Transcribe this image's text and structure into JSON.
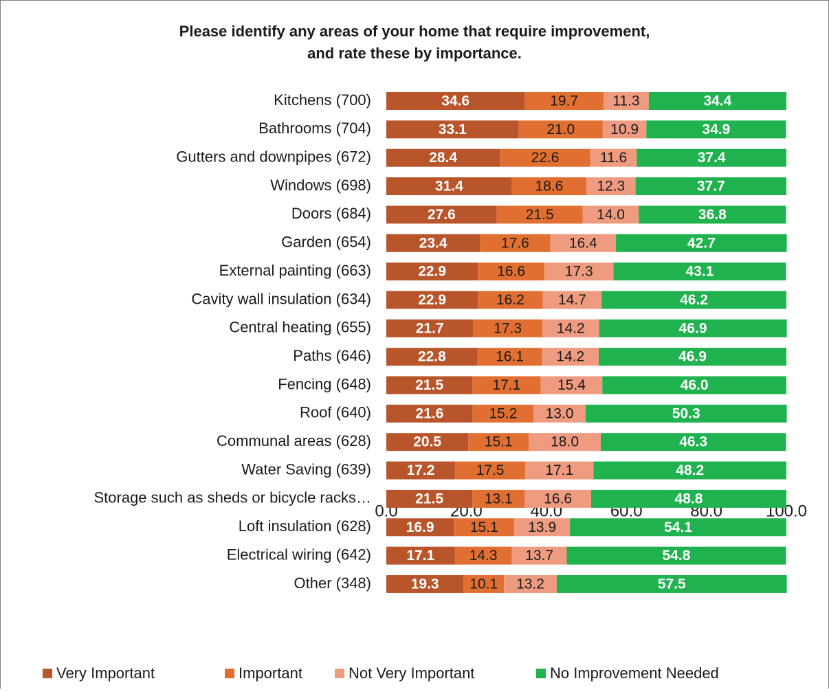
{
  "chart_data": {
    "type": "stacked_barh",
    "title": [
      "Please identify any areas of your home that require improvement,",
      "and rate these by importance."
    ],
    "categories": [
      "Kitchens (700)",
      "Bathrooms (704)",
      "Gutters and downpipes (672)",
      "Windows (698)",
      "Doors (684)",
      "Garden (654)",
      "External painting (663)",
      "Cavity wall insulation (634)",
      "Central heating (655)",
      "Paths (646)",
      "Fencing (648)",
      "Roof (640)",
      "Communal areas (628)",
      "Water Saving (639)",
      "Storage such as sheds or bicycle racks…",
      "Loft insulation (628)",
      "Electrical wiring (642)",
      "Other (348)"
    ],
    "series": [
      {
        "name": "Very Important",
        "color": "#b8552a",
        "label_color": "#ffffff",
        "values": [
          34.6,
          33.1,
          28.4,
          31.4,
          27.6,
          23.4,
          22.9,
          22.9,
          21.7,
          22.8,
          21.5,
          21.6,
          20.5,
          17.2,
          21.5,
          16.9,
          17.1,
          19.3
        ],
        "value_labels": [
          "34.6",
          "33.1",
          "28.4",
          "31.4",
          "27.6",
          "23.4",
          "22.9",
          "22.9",
          "21.7",
          "22.8",
          "21.5",
          "21.6",
          "20.5",
          "17.2",
          "21.5",
          "16.9",
          "17.1",
          "19.3"
        ]
      },
      {
        "name": "Important",
        "color": "#e06f31",
        "label_color": "#1a1a1a",
        "values": [
          19.7,
          21.0,
          22.6,
          18.6,
          21.5,
          17.6,
          16.6,
          16.2,
          17.3,
          16.1,
          17.1,
          15.2,
          15.1,
          17.5,
          13.1,
          15.1,
          14.3,
          10.1
        ],
        "value_labels": [
          "19.7",
          "21.0",
          "22.6",
          "18.6",
          "21.5",
          "17.6",
          "16.6",
          "16.2",
          "17.3",
          "16.1",
          "17.1",
          "15.2",
          "15.1",
          "17.5",
          "13.1",
          "15.1",
          "14.3",
          "10.1"
        ]
      },
      {
        "name": "Not Very Important",
        "color": "#ef9b80",
        "label_color": "#1a1a1a",
        "values": [
          11.3,
          10.9,
          11.6,
          12.3,
          14.0,
          16.4,
          17.3,
          14.7,
          14.2,
          14.2,
          15.4,
          13.0,
          18.0,
          17.1,
          16.6,
          13.9,
          13.7,
          13.2
        ],
        "value_labels": [
          "11.3",
          "10.9",
          "11.6",
          "12.3",
          "14.0",
          "16.4",
          "17.3",
          "14.7",
          "14.2",
          "14.2",
          "15.4",
          "13.0",
          "18.0",
          "17.1",
          "16.6",
          "13.9",
          "13.7",
          "13.2"
        ]
      },
      {
        "name": "No Improvement Needed",
        "color": "#1fb24e",
        "label_color": "#ffffff",
        "values": [
          34.4,
          34.9,
          37.4,
          37.7,
          36.8,
          42.7,
          43.1,
          46.2,
          46.9,
          46.9,
          46.0,
          50.3,
          46.3,
          48.2,
          48.8,
          54.1,
          54.8,
          57.5
        ],
        "value_labels": [
          "34.4",
          "34.9",
          "37.4",
          "37.7",
          "36.8",
          "42.7",
          "43.1",
          "46.2",
          "46.9",
          "46.9",
          "46.0",
          "50.3",
          "46.3",
          "48.2",
          "48.8",
          "54.1",
          "54.8",
          "57.5"
        ]
      }
    ],
    "xlim": [
      0,
      100
    ],
    "xticks": [
      {
        "value": 0,
        "label": "0.0"
      },
      {
        "value": 20,
        "label": "20.0"
      },
      {
        "value": 40,
        "label": "40.0"
      },
      {
        "value": 60,
        "label": "60.0"
      },
      {
        "value": 80,
        "label": "80.0"
      },
      {
        "value": 100,
        "label": "100.0"
      }
    ],
    "legend": "bottom"
  }
}
